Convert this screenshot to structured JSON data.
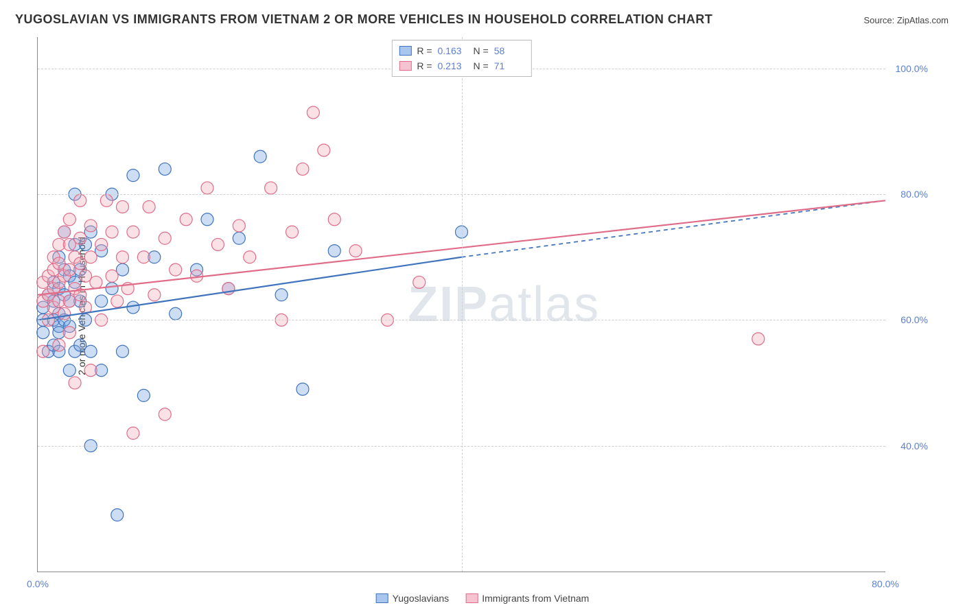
{
  "title": "YUGOSLAVIAN VS IMMIGRANTS FROM VIETNAM 2 OR MORE VEHICLES IN HOUSEHOLD CORRELATION CHART",
  "source": "Source: ZipAtlas.com",
  "y_axis_title": "2 or more Vehicles in Household",
  "watermark": "ZIPatlas",
  "chart": {
    "type": "scatter",
    "background_color": "#ffffff",
    "grid_color": "#d0d0d0",
    "axis_color": "#888888",
    "xlim": [
      0,
      80
    ],
    "ylim": [
      20,
      105
    ],
    "x_ticks": [
      {
        "v": 0,
        "label": "0.0%"
      },
      {
        "v": 80,
        "label": "80.0%"
      }
    ],
    "y_ticks": [
      {
        "v": 40,
        "label": "40.0%"
      },
      {
        "v": 60,
        "label": "60.0%"
      },
      {
        "v": 80,
        "label": "80.0%"
      },
      {
        "v": 100,
        "label": "100.0%"
      }
    ],
    "x_grid": [
      40
    ],
    "marker_radius": 9,
    "marker_stroke_width": 1.2,
    "marker_fill_opacity": 0.35,
    "label_fontsize": 14,
    "label_color": "#5b7fd1",
    "title_color": "#333333",
    "title_fontsize": 18
  },
  "series": [
    {
      "id": "yugoslavians",
      "label": "Yugoslavians",
      "color": "#6d9fe0",
      "stroke": "#3f73bd",
      "R": "0.163",
      "N": "58",
      "trend": {
        "x1": 0,
        "y1": 60,
        "x2": 40,
        "y2": 70,
        "dash_to_x": 80,
        "dash_to_y": 79,
        "width": 2.2
      },
      "points": [
        [
          0.5,
          60
        ],
        [
          0.5,
          62
        ],
        [
          0.5,
          58
        ],
        [
          1,
          64
        ],
        [
          1,
          55
        ],
        [
          1.5,
          63
        ],
        [
          1.5,
          66
        ],
        [
          1.5,
          60
        ],
        [
          1.5,
          56
        ],
        [
          2,
          70
        ],
        [
          2,
          65
        ],
        [
          2,
          61
        ],
        [
          2,
          59
        ],
        [
          2,
          58
        ],
        [
          2,
          55
        ],
        [
          2.5,
          74
        ],
        [
          2.5,
          68
        ],
        [
          2.5,
          64
        ],
        [
          2.5,
          60
        ],
        [
          3,
          67
        ],
        [
          3,
          63
        ],
        [
          3,
          59
        ],
        [
          3,
          52
        ],
        [
          3.5,
          80
        ],
        [
          3.5,
          72
        ],
        [
          3.5,
          66
        ],
        [
          3.5,
          55
        ],
        [
          4,
          68
        ],
        [
          4,
          63
        ],
        [
          4,
          56
        ],
        [
          4.5,
          72
        ],
        [
          4.5,
          60
        ],
        [
          5,
          74
        ],
        [
          5,
          55
        ],
        [
          5,
          40
        ],
        [
          6,
          71
        ],
        [
          6,
          63
        ],
        [
          6,
          52
        ],
        [
          7,
          80
        ],
        [
          7,
          65
        ],
        [
          7.5,
          29
        ],
        [
          8,
          68
        ],
        [
          8,
          55
        ],
        [
          9,
          83
        ],
        [
          9,
          62
        ],
        [
          10,
          48
        ],
        [
          11,
          70
        ],
        [
          12,
          84
        ],
        [
          13,
          61
        ],
        [
          15,
          68
        ],
        [
          16,
          76
        ],
        [
          18,
          65
        ],
        [
          19,
          73
        ],
        [
          21,
          86
        ],
        [
          23,
          64
        ],
        [
          25,
          49
        ],
        [
          28,
          71
        ],
        [
          40,
          74
        ]
      ]
    },
    {
      "id": "vietnam",
      "label": "Immigrants from Vietnam",
      "color": "#f2a8b8",
      "stroke": "#e06c88",
      "R": "0.213",
      "N": "71",
      "trend": {
        "x1": 0,
        "y1": 64,
        "x2": 80,
        "y2": 79,
        "width": 2.2
      },
      "points": [
        [
          0.5,
          55
        ],
        [
          0.5,
          63
        ],
        [
          0.5,
          66
        ],
        [
          1,
          60
        ],
        [
          1,
          64
        ],
        [
          1,
          67
        ],
        [
          1.5,
          62
        ],
        [
          1.5,
          65
        ],
        [
          1.5,
          68
        ],
        [
          1.5,
          70
        ],
        [
          2,
          56
        ],
        [
          2,
          63
        ],
        [
          2,
          66
        ],
        [
          2,
          69
        ],
        [
          2,
          72
        ],
        [
          2.5,
          61
        ],
        [
          2.5,
          67
        ],
        [
          2.5,
          74
        ],
        [
          3,
          58
        ],
        [
          3,
          63
        ],
        [
          3,
          68
        ],
        [
          3,
          72
        ],
        [
          3,
          76
        ],
        [
          3.5,
          65
        ],
        [
          3.5,
          70
        ],
        [
          3.5,
          50
        ],
        [
          4,
          64
        ],
        [
          4,
          69
        ],
        [
          4,
          73
        ],
        [
          4,
          79
        ],
        [
          4.5,
          62
        ],
        [
          4.5,
          67
        ],
        [
          5,
          70
        ],
        [
          5,
          75
        ],
        [
          5,
          52
        ],
        [
          5.5,
          66
        ],
        [
          6,
          72
        ],
        [
          6,
          60
        ],
        [
          6.5,
          79
        ],
        [
          7,
          67
        ],
        [
          7,
          74
        ],
        [
          7.5,
          63
        ],
        [
          8,
          78
        ],
        [
          8,
          70
        ],
        [
          8.5,
          65
        ],
        [
          9,
          74
        ],
        [
          9,
          42
        ],
        [
          10,
          70
        ],
        [
          10.5,
          78
        ],
        [
          11,
          64
        ],
        [
          12,
          73
        ],
        [
          12,
          45
        ],
        [
          13,
          68
        ],
        [
          14,
          76
        ],
        [
          15,
          67
        ],
        [
          16,
          81
        ],
        [
          17,
          72
        ],
        [
          18,
          65
        ],
        [
          19,
          75
        ],
        [
          20,
          70
        ],
        [
          22,
          81
        ],
        [
          23,
          60
        ],
        [
          24,
          74
        ],
        [
          25,
          84
        ],
        [
          26,
          93
        ],
        [
          27,
          87
        ],
        [
          28,
          76
        ],
        [
          30,
          71
        ],
        [
          33,
          60
        ],
        [
          36,
          66
        ],
        [
          68,
          57
        ]
      ]
    }
  ],
  "legend_top": {
    "rows": [
      {
        "swatch": "#a8c6ee",
        "border": "#3f73bd",
        "r_label": "R =",
        "r_val": "0.163",
        "n_label": "N =",
        "n_val": "58"
      },
      {
        "swatch": "#f6c4d0",
        "border": "#e06c88",
        "r_label": "R =",
        "r_val": "0.213",
        "n_label": "N =",
        "n_val": "71"
      }
    ]
  },
  "legend_bottom": [
    {
      "swatch": "#a8c6ee",
      "border": "#3f73bd",
      "label": "Yugoslavians"
    },
    {
      "swatch": "#f6c4d0",
      "border": "#e06c88",
      "label": "Immigrants from Vietnam"
    }
  ]
}
